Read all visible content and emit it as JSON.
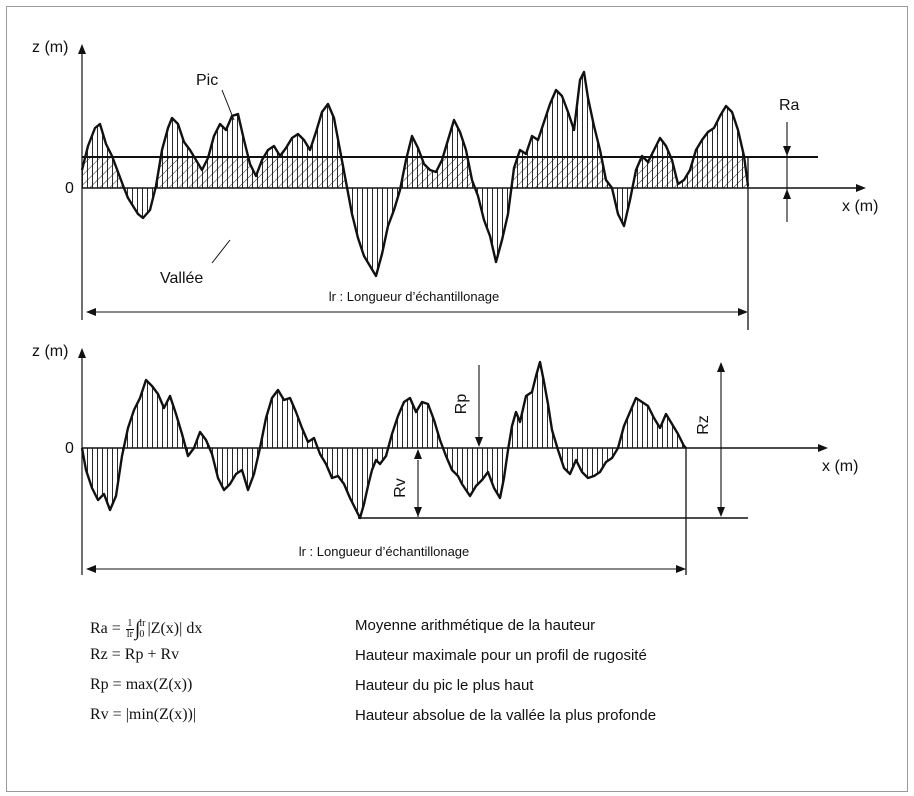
{
  "top_panel": {
    "z_axis_label": "z (m)",
    "x_axis_label": "x (m)",
    "origin_label": "0",
    "peak_label": "Pic",
    "valley_label": "Vallée",
    "ra_label": "Ra",
    "length_label": "lr : Longueur d’échantillonage"
  },
  "bottom_panel": {
    "z_axis_label": "z (m)",
    "x_axis_label": "x (m)",
    "origin_label": "0",
    "rp_label": "Rp",
    "rv_label": "Rv",
    "rz_label": "Rz",
    "length_label": "lr : Longueur d’échantillonage"
  },
  "formulas": [
    {
      "name": "Ra",
      "lhs": "Ra =",
      "frac_num": "1",
      "frac_den": "lr",
      "integral": "∫",
      "upper": "lr",
      "lower": "0",
      "rhs": "|Z(x)| dx",
      "description": "Moyenne arithmétique de la hauteur"
    },
    {
      "name": "Rz",
      "expr": "Rz = Rp + Rv",
      "description": "Hauteur maximale pour un profil de rugosité"
    },
    {
      "name": "Rp",
      "expr": "Rp = max(Z(x))",
      "description": "Hauteur du pic le plus haut"
    },
    {
      "name": "Rv",
      "expr": "Rv = |min(Z(x))|",
      "description": "Hauteur absolue de la vallée la plus profonde"
    }
  ]
}
